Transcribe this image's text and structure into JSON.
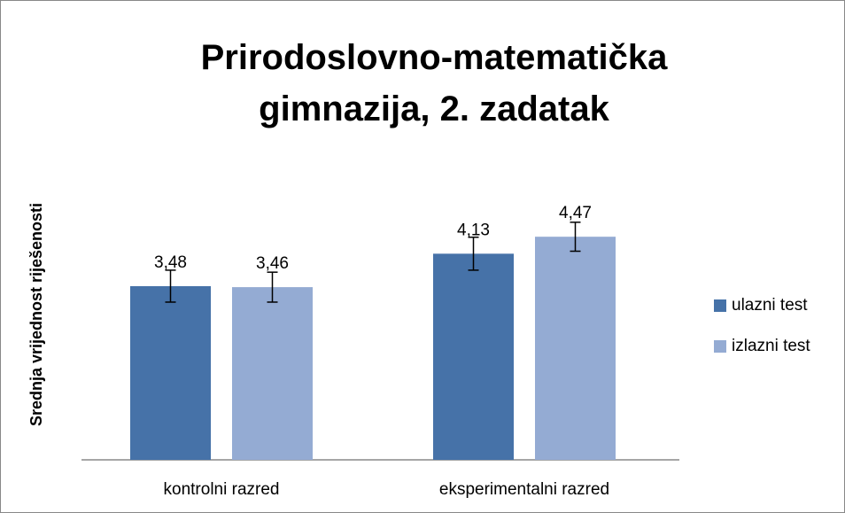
{
  "chart_data": {
    "type": "bar",
    "title": "Prirodoslovno-matematička gimnazija, 2. zadatak",
    "y_label": "Srednja vrijednost riješenosti",
    "categories": [
      "kontrolni razred",
      "eksperimentalni razred"
    ],
    "series": [
      {
        "name": "ulazni test",
        "color": "#4672a8",
        "values": [
          3.48,
          4.13
        ],
        "value_labels": [
          "3,48",
          "4,13"
        ],
        "errors": [
          0.32,
          0.33
        ]
      },
      {
        "name": "izlazni test",
        "color": "#94abd3",
        "values": [
          3.46,
          4.47
        ],
        "value_labels": [
          "3,46",
          "4,47"
        ],
        "errors": [
          0.3,
          0.29
        ]
      }
    ],
    "ylim": [
      0,
      6
    ],
    "legend": "right"
  }
}
